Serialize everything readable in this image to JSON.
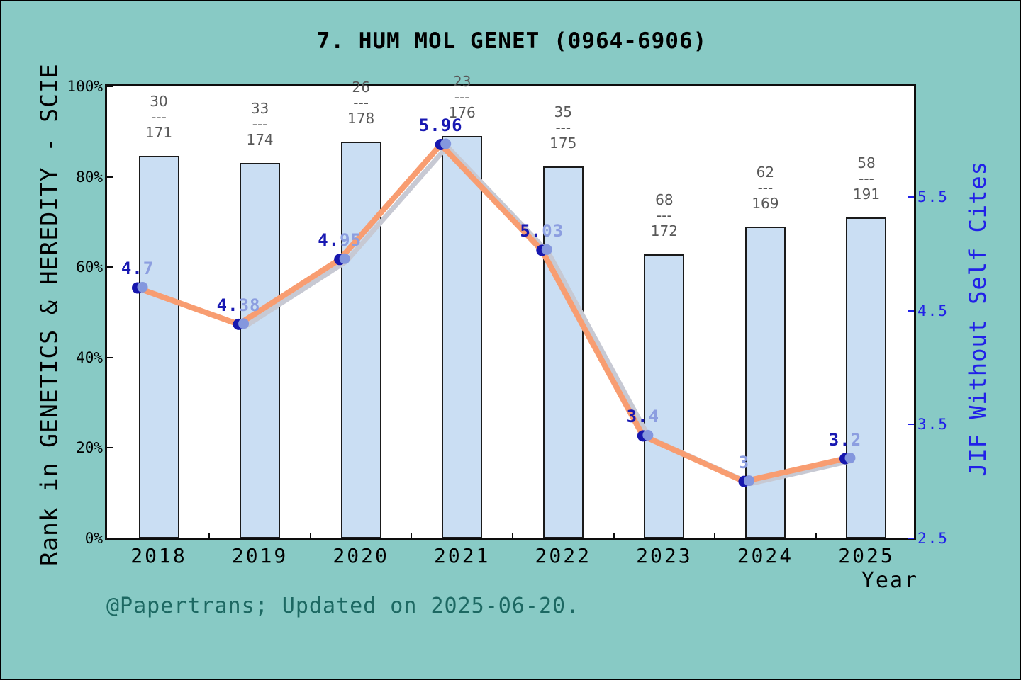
{
  "title": "7. HUM MOL GENET (0964-6906)",
  "caption": "@Papertrans; Updated on 2025-06-20.",
  "chart_data": {
    "type": "bar+line-dual-axis",
    "title": "7. HUM MOL GENET (0964-6906)",
    "xlabel": "Year",
    "categories": [
      "2018",
      "2019",
      "2020",
      "2021",
      "2022",
      "2023",
      "2024",
      "2025"
    ],
    "left_axis": {
      "label": "Rank in GENETICS & HEREDITY - SCIE",
      "ticks": [
        "0%",
        "20%",
        "40%",
        "60%",
        "80%",
        "100%"
      ],
      "range": [
        0,
        100
      ]
    },
    "right_axis": {
      "label": "JIF Without Self Cites",
      "ticks": [
        "2.5",
        "3.5",
        "4.5",
        "5.5"
      ],
      "range": [
        2.5,
        6.48
      ]
    },
    "grid": false,
    "legend": false,
    "fraction_bar": "---",
    "series": [
      {
        "name": "Rank in GENETICS & HEREDITY - SCIE",
        "type": "bar",
        "axis": "left",
        "values_percent": [
          84.7,
          83.1,
          87.8,
          89.0,
          82.3,
          62.8,
          68.9,
          71.0
        ],
        "bar_labels": [
          {
            "numerator": "30",
            "denominator": "171"
          },
          {
            "numerator": "33",
            "denominator": "174"
          },
          {
            "numerator": "26",
            "denominator": "178"
          },
          {
            "numerator": "23",
            "denominator": "176"
          },
          {
            "numerator": "35",
            "denominator": "175"
          },
          {
            "numerator": "68",
            "denominator": "172"
          },
          {
            "numerator": "62",
            "denominator": "169"
          },
          {
            "numerator": "58",
            "denominator": "191"
          }
        ]
      },
      {
        "name": "JIF Without Self Cites",
        "type": "line",
        "axis": "right",
        "values": [
          4.7,
          4.38,
          4.95,
          5.96,
          5.03,
          3.4,
          3.0,
          3.2
        ],
        "point_labels": [
          {
            "dark": "4.",
            "light": "7"
          },
          {
            "dark": "4.",
            "light": "38"
          },
          {
            "dark": "4.",
            "light": "95"
          },
          {
            "dark": "5.96",
            "light": ""
          },
          {
            "dark": "5.",
            "light": "03"
          },
          {
            "dark": "3.",
            "light": "4"
          },
          {
            "dark": "",
            "light": "3"
          },
          {
            "dark": "3.",
            "light": "2"
          }
        ]
      }
    ],
    "colors": {
      "background": "#88CAC5",
      "plot_background": "#FFFFFF",
      "frame": "#0D0D0D",
      "bar_fill": "#CADEF3",
      "bar_border": "#1A1A1A",
      "line_primary": "#F89D71",
      "line_secondary": "#C7C9D3",
      "marker_dark": "#1717AE",
      "marker_light": "#8497DE",
      "point_label_dark": "#1818B2",
      "point_label_light": "#8C9EE0",
      "right_axis_blue": "#2121E8",
      "fraction_gray": "#585858",
      "caption_teal": "#1C6862",
      "text_black": "#000000"
    }
  }
}
